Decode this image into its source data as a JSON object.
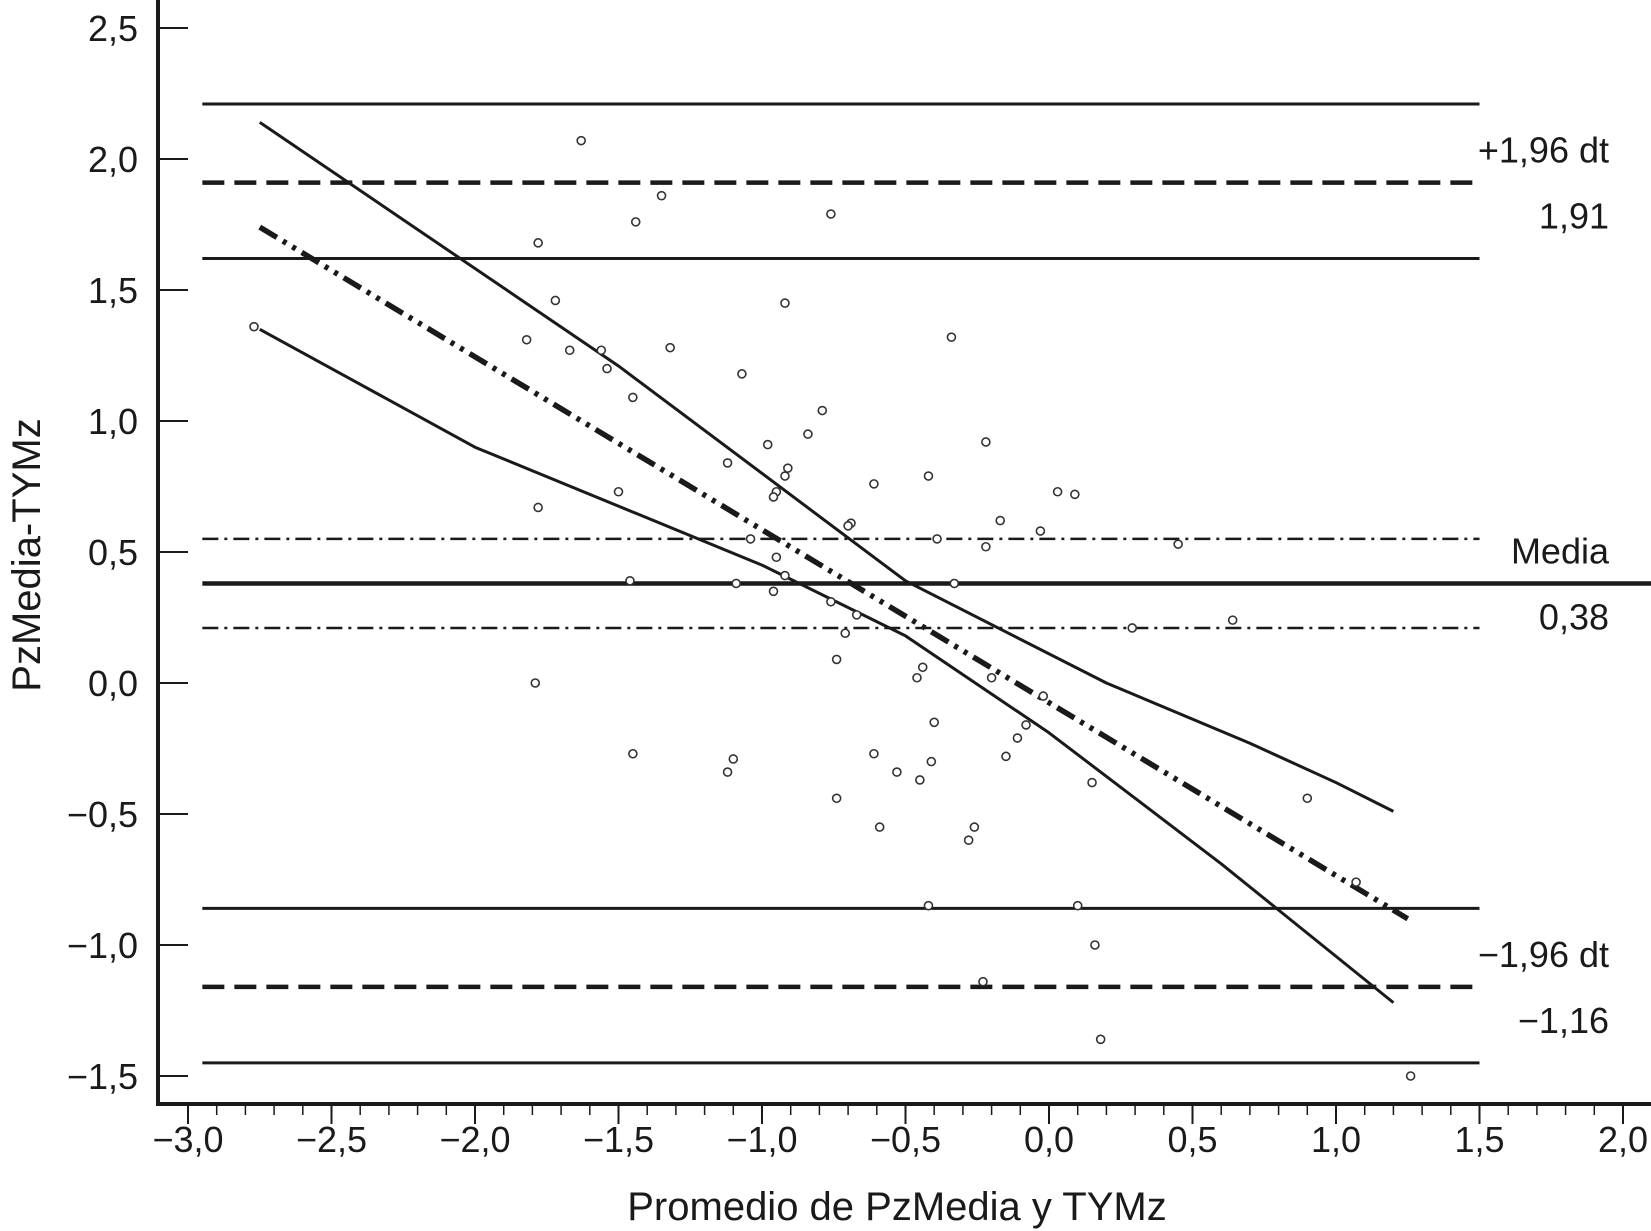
{
  "chart_data": {
    "type": "scatter",
    "title": "",
    "xlabel": "Promedio de PzMedia y TYMz",
    "ylabel": "PzMedia-TYMz",
    "xlim": [
      -3.0,
      2.0
    ],
    "ylim": [
      -1.5,
      2.5
    ],
    "x_ticks": [
      -3.0,
      -2.5,
      -2.0,
      -1.5,
      -1.0,
      -0.5,
      0.0,
      0.5,
      1.0,
      1.5,
      2.0
    ],
    "x_tick_labels": [
      "−3,0",
      "−2,5",
      "−2,0",
      "−1,5",
      "−1,0",
      "−0,5",
      "0,0",
      "0,5",
      "1,0",
      "1,5",
      "2,0"
    ],
    "y_ticks": [
      2.5,
      2.0,
      1.5,
      1.0,
      0.5,
      0.0,
      -0.5,
      -1.0,
      -1.5
    ],
    "y_tick_labels": [
      "2,5",
      "2,0",
      "1,5",
      "1,0",
      "0,5",
      "0,0",
      "−0,5",
      "−1,0",
      "−1,5"
    ],
    "grid": false,
    "points": [
      [
        -2.77,
        1.36
      ],
      [
        -1.63,
        2.07
      ],
      [
        -1.35,
        1.86
      ],
      [
        -1.44,
        1.76
      ],
      [
        -0.76,
        1.79
      ],
      [
        -1.78,
        1.68
      ],
      [
        -1.72,
        1.46
      ],
      [
        -0.92,
        1.45
      ],
      [
        -1.82,
        1.31
      ],
      [
        -1.67,
        1.27
      ],
      [
        -1.56,
        1.27
      ],
      [
        -1.32,
        1.28
      ],
      [
        -0.34,
        1.32
      ],
      [
        -1.54,
        1.2
      ],
      [
        -1.07,
        1.18
      ],
      [
        -1.45,
        1.09
      ],
      [
        -0.79,
        1.04
      ],
      [
        -0.84,
        0.95
      ],
      [
        -0.98,
        0.91
      ],
      [
        -0.22,
        0.92
      ],
      [
        -1.12,
        0.84
      ],
      [
        -0.91,
        0.82
      ],
      [
        -0.92,
        0.79
      ],
      [
        -0.42,
        0.79
      ],
      [
        -0.61,
        0.76
      ],
      [
        -1.5,
        0.73
      ],
      [
        -0.95,
        0.73
      ],
      [
        -0.96,
        0.71
      ],
      [
        0.03,
        0.73
      ],
      [
        0.09,
        0.72
      ],
      [
        -1.78,
        0.67
      ],
      [
        -0.69,
        0.61
      ],
      [
        -0.7,
        0.6
      ],
      [
        -0.17,
        0.62
      ],
      [
        -0.03,
        0.58
      ],
      [
        -1.04,
        0.55
      ],
      [
        -0.39,
        0.55
      ],
      [
        -0.22,
        0.52
      ],
      [
        0.45,
        0.53
      ],
      [
        -0.95,
        0.48
      ],
      [
        -0.92,
        0.41
      ],
      [
        -1.46,
        0.39
      ],
      [
        -1.09,
        0.38
      ],
      [
        -0.33,
        0.38
      ],
      [
        -0.96,
        0.35
      ],
      [
        -0.76,
        0.31
      ],
      [
        -0.67,
        0.26
      ],
      [
        0.64,
        0.24
      ],
      [
        -0.71,
        0.19
      ],
      [
        0.29,
        0.21
      ],
      [
        -0.74,
        0.09
      ],
      [
        -0.44,
        0.06
      ],
      [
        -0.46,
        0.02
      ],
      [
        -0.2,
        0.02
      ],
      [
        -0.02,
        -0.05
      ],
      [
        -1.79,
        0.0
      ],
      [
        -0.4,
        -0.15
      ],
      [
        -0.08,
        -0.16
      ],
      [
        -0.11,
        -0.21
      ],
      [
        -1.45,
        -0.27
      ],
      [
        -1.1,
        -0.29
      ],
      [
        -0.61,
        -0.27
      ],
      [
        -0.41,
        -0.3
      ],
      [
        -0.15,
        -0.28
      ],
      [
        -1.12,
        -0.34
      ],
      [
        -0.53,
        -0.34
      ],
      [
        -0.45,
        -0.37
      ],
      [
        0.15,
        -0.38
      ],
      [
        -0.74,
        -0.44
      ],
      [
        0.9,
        -0.44
      ],
      [
        -0.59,
        -0.55
      ],
      [
        -0.26,
        -0.55
      ],
      [
        -0.28,
        -0.6
      ],
      [
        -0.42,
        -0.85
      ],
      [
        0.1,
        -0.85
      ],
      [
        1.07,
        -0.76
      ],
      [
        0.16,
        -1.0
      ],
      [
        -0.23,
        -1.14
      ],
      [
        0.18,
        -1.36
      ],
      [
        1.26,
        -1.5
      ]
    ],
    "reference_lines": [
      {
        "y": 2.21,
        "style": "solid"
      },
      {
        "y": 1.91,
        "style": "dashed"
      },
      {
        "y": 1.62,
        "style": "solid"
      },
      {
        "y": 0.55,
        "style": "dashdot"
      },
      {
        "y": 0.38,
        "style": "solid-bold"
      },
      {
        "y": 0.21,
        "style": "dashdot"
      },
      {
        "y": -0.86,
        "style": "solid"
      },
      {
        "y": -1.16,
        "style": "dashed"
      },
      {
        "y": -1.45,
        "style": "solid"
      }
    ],
    "regression_line": {
      "x": [
        -2.75,
        1.25
      ],
      "y": [
        1.74,
        -0.9
      ],
      "style": "dash-dot-dot"
    },
    "confidence_band_upper": {
      "x": [
        -2.75,
        -1.5,
        -0.5,
        0.2,
        0.7,
        1.0,
        1.2
      ],
      "y": [
        2.14,
        1.21,
        0.39,
        0.0,
        -0.23,
        -0.38,
        -0.49
      ]
    },
    "confidence_band_lower": {
      "x": [
        -2.75,
        -2.0,
        -1.0,
        -0.5,
        0.0,
        0.6,
        1.2
      ],
      "y": [
        1.35,
        0.9,
        0.45,
        0.18,
        -0.19,
        -0.69,
        -1.22
      ]
    },
    "annotations": [
      {
        "text": "+1,96 dt",
        "y": 1.91,
        "position": "above-right"
      },
      {
        "text": "1,91",
        "y": 1.91,
        "position": "below-right"
      },
      {
        "text": "Media",
        "y": 0.38,
        "position": "above-right"
      },
      {
        "text": "0,38",
        "y": 0.38,
        "position": "below-right"
      },
      {
        "text": "−1,96 dt",
        "y": -1.16,
        "position": "above-right"
      },
      {
        "text": "−1,16",
        "y": -1.16,
        "position": "below-right"
      }
    ]
  }
}
